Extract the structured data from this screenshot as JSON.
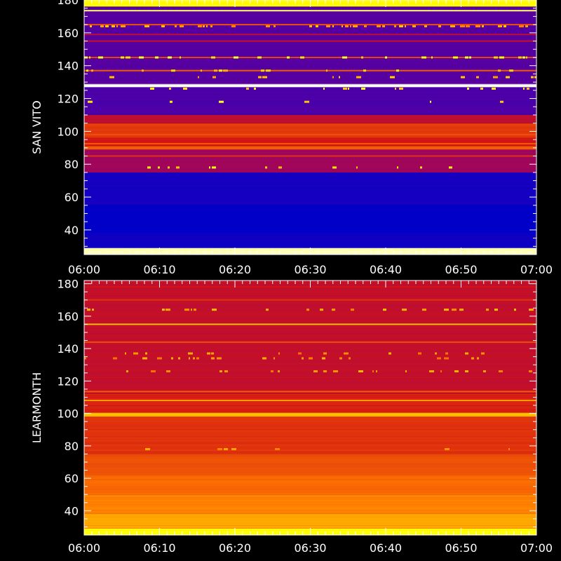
{
  "chart_data": [
    {
      "type": "heatmap",
      "title": "",
      "ylabel": "SAN VITO",
      "xlabel": "",
      "x_ticks": [
        "06:00",
        "06:10",
        "06:20",
        "06:30",
        "06:40",
        "06:50",
        "07:00"
      ],
      "y_ticks": [
        40,
        60,
        80,
        100,
        120,
        140,
        160,
        180
      ],
      "xlim": [
        "06:00",
        "07:00"
      ],
      "ylim": [
        25,
        180
      ],
      "colorscale": [
        "#0000c8",
        "#3c00b4",
        "#8c0078",
        "#d21414",
        "#ff7800",
        "#ffff00",
        "#ffffff"
      ],
      "bands": [
        {
          "from": 25,
          "to": 29,
          "level": 0.95
        },
        {
          "from": 29,
          "to": 38,
          "level": 0.04
        },
        {
          "from": 38,
          "to": 55,
          "level": 0.0
        },
        {
          "from": 55,
          "to": 75,
          "level": 0.06
        },
        {
          "from": 75,
          "to": 89,
          "level": 0.38
        },
        {
          "from": 89,
          "to": 91,
          "level": 0.62
        },
        {
          "from": 91,
          "to": 96,
          "level": 0.5
        },
        {
          "from": 96,
          "to": 105,
          "level": 0.56
        },
        {
          "from": 105,
          "to": 110,
          "level": 0.45
        },
        {
          "from": 110,
          "to": 127,
          "level": 0.2
        },
        {
          "from": 127,
          "to": 129,
          "level": 1.0
        },
        {
          "from": 129,
          "to": 176,
          "level": 0.22
        },
        {
          "from": 176,
          "to": 180,
          "level": 0.83
        }
      ],
      "lines": [
        {
          "y": 85,
          "level": 0.55
        },
        {
          "y": 92.5,
          "level": 0.62
        },
        {
          "y": 98,
          "level": 0.6
        },
        {
          "y": 104,
          "level": 0.58
        },
        {
          "y": 137,
          "level": 0.62
        },
        {
          "y": 145,
          "level": 0.58
        },
        {
          "y": 155,
          "level": 0.48
        },
        {
          "y": 159,
          "level": 0.45
        },
        {
          "y": 165,
          "level": 0.6
        },
        {
          "y": 173.5,
          "level": 0.9
        }
      ],
      "bursts": [
        {
          "y": 164,
          "density": 0.45,
          "level": 0.72
        },
        {
          "y": 145,
          "density": 0.25,
          "level": 0.82
        },
        {
          "y": 137,
          "density": 0.2,
          "level": 0.78
        },
        {
          "y": 133,
          "density": 0.12,
          "level": 0.75
        },
        {
          "y": 126,
          "density": 0.15,
          "level": 0.8
        },
        {
          "y": 118,
          "density": 0.08,
          "level": 0.8
        },
        {
          "y": 78,
          "density": 0.12,
          "level": 0.8
        }
      ]
    },
    {
      "type": "heatmap",
      "title": "",
      "ylabel": "LEARMONTH",
      "xlabel": "",
      "x_ticks": [
        "06:00",
        "06:10",
        "06:20",
        "06:30",
        "06:40",
        "06:50",
        "07:00"
      ],
      "y_ticks": [
        40,
        60,
        80,
        100,
        120,
        140,
        160,
        180
      ],
      "xlim": [
        "06:00",
        "07:00"
      ],
      "ylim": [
        25,
        182
      ],
      "colorscale": [
        "#0000c8",
        "#3c00b4",
        "#8c0078",
        "#d21414",
        "#ff7800",
        "#ffff00",
        "#ffffff"
      ],
      "bands": [
        {
          "from": 25,
          "to": 29,
          "level": 0.84
        },
        {
          "from": 29,
          "to": 38,
          "level": 0.72
        },
        {
          "from": 38,
          "to": 50,
          "level": 0.68
        },
        {
          "from": 50,
          "to": 62,
          "level": 0.64
        },
        {
          "from": 62,
          "to": 75,
          "level": 0.6
        },
        {
          "from": 75,
          "to": 98,
          "level": 0.55
        },
        {
          "from": 98,
          "to": 100.5,
          "level": 0.75
        },
        {
          "from": 100.5,
          "to": 112,
          "level": 0.52
        },
        {
          "from": 112,
          "to": 182,
          "level": 0.46
        }
      ],
      "lines": [
        {
          "y": 108,
          "level": 0.72
        },
        {
          "y": 113.5,
          "level": 0.62
        },
        {
          "y": 144,
          "level": 0.6
        },
        {
          "y": 155,
          "level": 0.75
        },
        {
          "y": 170,
          "level": 0.55
        },
        {
          "y": 178,
          "level": 0.5
        }
      ],
      "bursts": [
        {
          "y": 164,
          "density": 0.25,
          "level": 0.72
        },
        {
          "y": 137,
          "density": 0.2,
          "level": 0.7
        },
        {
          "y": 134,
          "density": 0.25,
          "level": 0.7
        },
        {
          "y": 126,
          "density": 0.25,
          "level": 0.7
        },
        {
          "y": 78,
          "density": 0.12,
          "level": 0.72
        }
      ]
    }
  ]
}
